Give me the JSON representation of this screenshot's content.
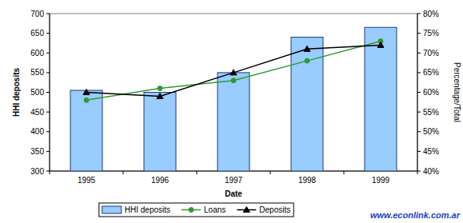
{
  "chart_data": {
    "type": "bar",
    "categories": [
      "1995",
      "1996",
      "1997",
      "1998",
      "1999"
    ],
    "xlabel": "Date",
    "ylabel": "HHI deposits",
    "y2label": "Percentage/Total",
    "ylim": [
      300,
      700
    ],
    "yticks": [
      300,
      350,
      400,
      450,
      500,
      550,
      600,
      650,
      700
    ],
    "y2lim": [
      40,
      80
    ],
    "y2ticks": [
      {
        "value": 40,
        "label": "40%"
      },
      {
        "value": 45,
        "label": "45%"
      },
      {
        "value": 50,
        "label": "50%"
      },
      {
        "value": 55,
        "label": "55%"
      },
      {
        "value": 60,
        "label": "60%"
      },
      {
        "value": 65,
        "label": "65%"
      },
      {
        "value": 70,
        "label": "70%"
      },
      {
        "value": 75,
        "label": "75%"
      },
      {
        "value": 80,
        "label": "80%"
      }
    ],
    "series": [
      {
        "name": "HHI deposits",
        "type": "bar",
        "color": "#99ccff",
        "values": [
          505,
          500,
          550,
          640,
          665
        ]
      },
      {
        "name": "Loans",
        "type": "line",
        "axis": "y2",
        "color": "#339933",
        "marker": "circle",
        "values": [
          58,
          61,
          63,
          68,
          73
        ]
      },
      {
        "name": "Deposits",
        "type": "line",
        "axis": "y2",
        "color": "#000000",
        "marker": "triangle",
        "values": [
          60,
          59,
          65,
          71,
          72
        ]
      }
    ],
    "grid": false,
    "legend": "bottom",
    "annotations": [
      "www.econlink.com.ar"
    ]
  }
}
